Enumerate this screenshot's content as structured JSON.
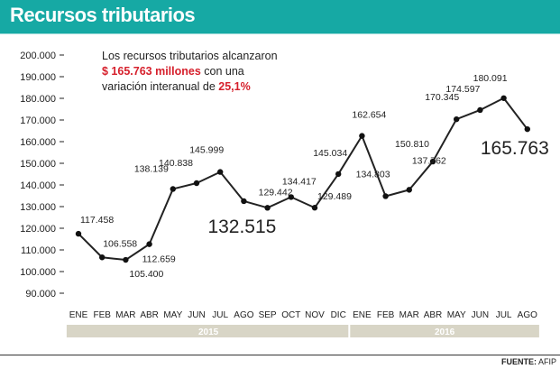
{
  "header": {
    "title": "Recursos tributarios"
  },
  "annotation": {
    "line1": "Los recursos tributarios alcanzaron",
    "line2_bold": "$ 165.763 millones",
    "line2_rest": " con una",
    "line3": "variación interanual de ",
    "line3_bold": "25,1%"
  },
  "source": {
    "label": "FUENTE:",
    "value": "AFIP"
  },
  "colors": {
    "header_bg": "#16a9a4",
    "accent_red": "#d6202c",
    "line": "#222222",
    "year_bar": "#d8d5c6"
  },
  "chart_data": {
    "type": "line",
    "title": "Recursos tributarios",
    "x": [
      "ENE",
      "FEB",
      "MAR",
      "ABR",
      "MAY",
      "JUN",
      "JUL",
      "AGO",
      "SEP",
      "OCT",
      "NOV",
      "DIC",
      "ENE",
      "FEB",
      "MAR",
      "ABR",
      "MAY",
      "JUN",
      "JUL",
      "AGO"
    ],
    "years": [
      {
        "label": "2015",
        "count": 12
      },
      {
        "label": "2016",
        "count": 8
      }
    ],
    "series": [
      {
        "values": [
          117458,
          106558,
          105400,
          112659,
          138139,
          140838,
          145999,
          132515,
          129442,
          134417,
          129489,
          145034,
          162654,
          134803,
          137762,
          150810,
          170345,
          174597,
          180091,
          165763
        ]
      }
    ],
    "point_labels": [
      "117.458",
      "106.558",
      "105.400",
      "112.659",
      "138.139",
      "140.838",
      "145.999",
      "132.515",
      "129.442",
      "134.417",
      "129.489",
      "145.034",
      "162.654",
      "134.803",
      "137.762",
      "150.810",
      "170.345",
      "174.597",
      "180.091",
      "165.763"
    ],
    "yticks": [
      90000,
      100000,
      110000,
      120000,
      130000,
      140000,
      150000,
      160000,
      170000,
      180000,
      190000,
      200000
    ],
    "ytick_labels": [
      "90.000",
      "100.000",
      "110.000",
      "120.000",
      "130.000",
      "140.000",
      "150.000",
      "160.000",
      "170.000",
      "180.000",
      "190.000",
      "200.000"
    ],
    "ylim": [
      90000,
      200000
    ],
    "grid": false,
    "highlighted_points": [
      7,
      19
    ]
  }
}
